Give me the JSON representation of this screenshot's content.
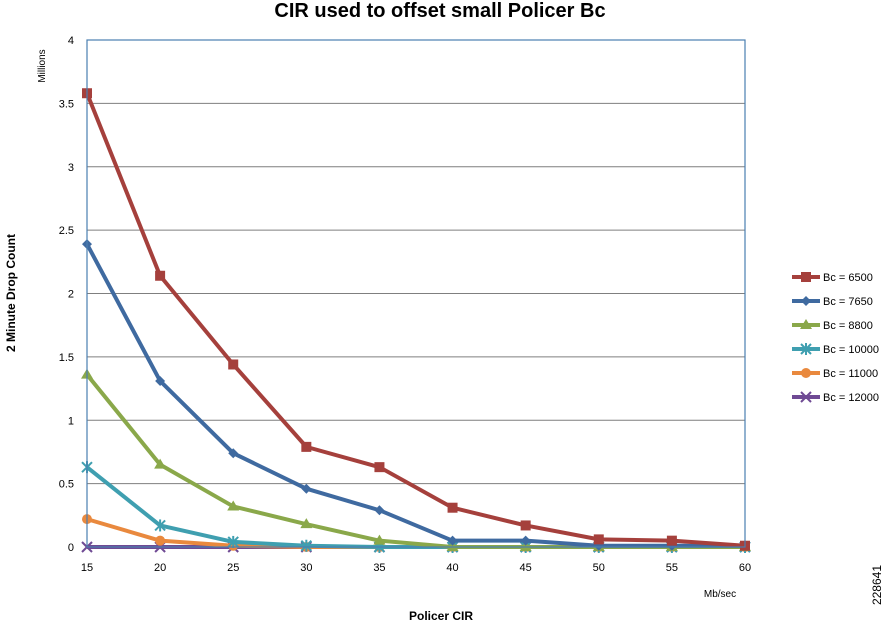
{
  "chart_data": {
    "type": "line",
    "title": "CIR used to offset small Policer Bc",
    "xlabel": "Policer CIR",
    "x_unit_label": "Mb/sec",
    "ylabel": "2 Minute Drop Count",
    "y_unit_label": "Millions",
    "xlim": [
      15,
      60
    ],
    "ylim": [
      0,
      4
    ],
    "x": [
      15,
      20,
      25,
      30,
      35,
      40,
      45,
      50,
      55,
      60
    ],
    "x_ticks": [
      "15",
      "20",
      "25",
      "30",
      "35",
      "40",
      "45",
      "50",
      "55",
      "60"
    ],
    "y_ticks": [
      "0",
      "0.5",
      "1",
      "1.5",
      "2",
      "2.5",
      "3",
      "3.5",
      "4"
    ],
    "grid": "horizontal",
    "legend_position": "right",
    "series": [
      {
        "name": "Bc = 6500",
        "color": "#a5403c",
        "marker": "square",
        "values": [
          3.58,
          2.14,
          1.44,
          0.79,
          0.63,
          0.31,
          0.17,
          0.06,
          0.05,
          0.01
        ]
      },
      {
        "name": "Bc = 7650",
        "color": "#3f6aa0",
        "marker": "diamond",
        "values": [
          2.39,
          1.31,
          0.74,
          0.46,
          0.29,
          0.05,
          0.05,
          0.01,
          0.01,
          0.01
        ]
      },
      {
        "name": "Bc = 8800",
        "color": "#8aa84a",
        "marker": "triangle",
        "values": [
          1.36,
          0.65,
          0.32,
          0.18,
          0.05,
          0.0,
          0.0,
          0.0,
          0.0,
          0.0
        ]
      },
      {
        "name": "Bc = 10000",
        "color": "#3f9fb0",
        "marker": "star",
        "values": [
          0.63,
          0.17,
          0.04,
          0.01,
          0.0,
          0.0,
          0.0,
          0.0,
          0.0,
          0.0
        ]
      },
      {
        "name": "Bc = 11000",
        "color": "#e9893e",
        "marker": "circle",
        "values": [
          0.22,
          0.05,
          0.01,
          0.0,
          0.0,
          0.0,
          0.0,
          0.0,
          0.0,
          0.0
        ]
      },
      {
        "name": "Bc = 12000",
        "color": "#6f4a94",
        "marker": "x",
        "values": [
          0.0,
          0.0,
          0.0,
          0.0,
          0.0,
          0.0,
          0.0,
          0.0,
          0.0,
          0.0
        ]
      }
    ]
  },
  "figure_id": "228641"
}
